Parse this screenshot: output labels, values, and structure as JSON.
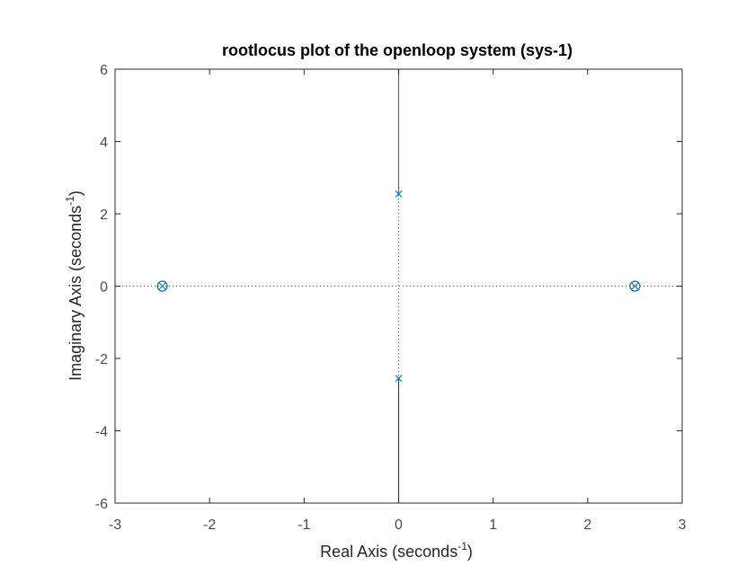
{
  "chart_data": {
    "type": "rootlocus",
    "title": "rootlocus plot of the openloop system (sys-1)",
    "xlabel": {
      "text": "Real Axis (seconds",
      "sup": "-1",
      "close": ")"
    },
    "ylabel": {
      "text": "Imaginary Axis (seconds",
      "sup": "-1",
      "close": ")"
    },
    "xlim": [
      -3,
      3
    ],
    "ylim": [
      -6,
      6
    ],
    "xticks": [
      -3,
      -2,
      -1,
      0,
      1,
      2,
      3
    ],
    "yticks": [
      -6,
      -4,
      -2,
      0,
      2,
      4,
      6
    ],
    "grid": false,
    "poles": [
      {
        "re": 0,
        "im": 2.55
      },
      {
        "re": 0,
        "im": -2.55
      }
    ],
    "zeros": [
      {
        "re": -2.5,
        "im": 0
      },
      {
        "re": 2.5,
        "im": 0
      }
    ],
    "branches": [
      {
        "points": [
          [
            0,
            2.55
          ],
          [
            0,
            6
          ]
        ],
        "color": "#2e8b2e"
      },
      {
        "points": [
          [
            0,
            -2.55
          ],
          [
            0,
            -6
          ]
        ],
        "color": "#a2142f"
      }
    ],
    "marker_color": "#0072bd",
    "axis_color": "#262626"
  }
}
